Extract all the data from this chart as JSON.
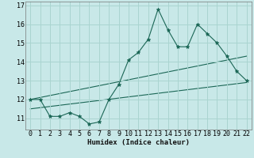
{
  "xlabel": "Humidex (Indice chaleur)",
  "bg_color": "#c8e8e8",
  "grid_color": "#aad4d0",
  "line_color": "#1a6655",
  "xdata": [
    0,
    1,
    2,
    3,
    4,
    5,
    6,
    7,
    8,
    9,
    10,
    11,
    12,
    13,
    14,
    15,
    16,
    17,
    18,
    19,
    20,
    21,
    22
  ],
  "ydata": [
    12.0,
    12.0,
    11.1,
    11.1,
    11.3,
    11.1,
    10.7,
    10.8,
    12.0,
    12.8,
    14.1,
    14.5,
    15.2,
    16.8,
    15.7,
    14.8,
    14.8,
    16.0,
    15.5,
    15.0,
    14.3,
    13.5,
    13.0
  ],
  "ylim": [
    10.4,
    17.2
  ],
  "xlim": [
    -0.5,
    22.5
  ],
  "yticks": [
    11,
    12,
    13,
    14,
    15,
    16,
    17
  ],
  "xticks": [
    0,
    1,
    2,
    3,
    4,
    5,
    6,
    7,
    8,
    9,
    10,
    11,
    12,
    13,
    14,
    15,
    16,
    17,
    18,
    19,
    20,
    21,
    22
  ],
  "trend1_x": [
    0,
    22
  ],
  "trend1_y": [
    12.0,
    14.3
  ],
  "trend2_x": [
    0,
    22
  ],
  "trend2_y": [
    11.5,
    12.9
  ],
  "xlabel_fontsize": 6.5,
  "tick_fontsize": 6
}
